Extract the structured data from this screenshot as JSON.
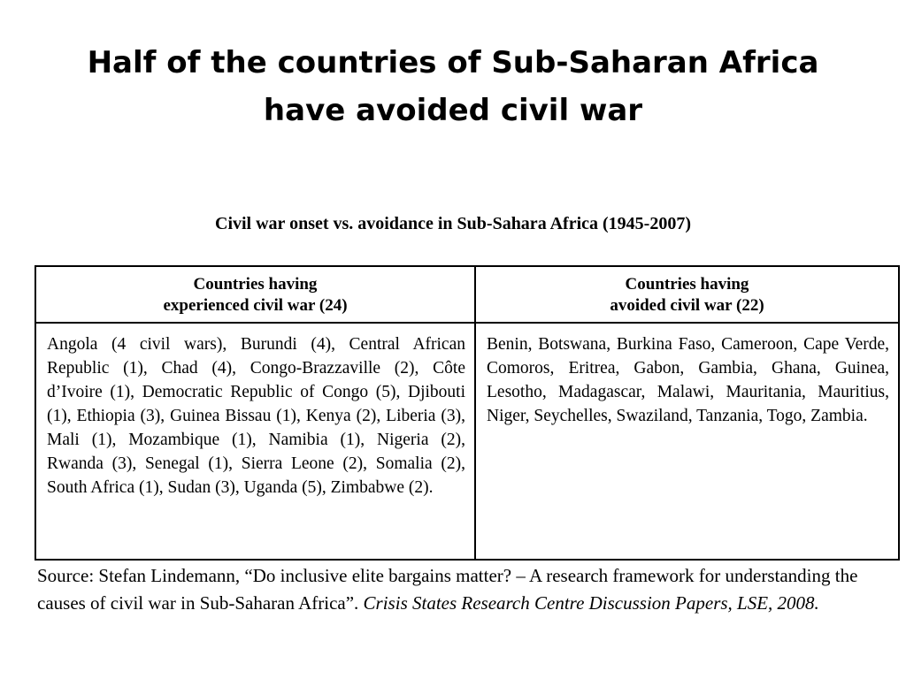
{
  "slide": {
    "title_line1": "Half of the countries of Sub-Saharan Africa",
    "title_line2": "have avoided civil war"
  },
  "table": {
    "caption": "Civil war onset vs. avoidance in Sub-Sahara Africa (1945-2007)",
    "headers": [
      {
        "line1": "Countries having",
        "line2": "experienced civil war (24)"
      },
      {
        "line1": "Countries having",
        "line2": "avoided civil war (22)"
      }
    ],
    "cells": [
      "Angola (4 civil wars), Burundi (4), Central African Republic (1), Chad (4), Congo-Brazzaville (2), Côte d’Ivoire (1), Democratic Republic of Congo (5), Djibouti (1), Ethiopia (3), Guinea Bissau (1), Kenya (2), Liberia (3), Mali (1), Mozambique (1), Namibia (1), Nigeria (2), Rwanda (3), Senegal (1), Sierra Leone (2), Somalia (2), South Africa (1), Sudan (3), Uganda (5), Zimbabwe (2).",
      "Benin, Botswana, Burkina Faso, Cameroon, Cape Verde, Comoros, Eritrea, Gabon, Gambia, Ghana, Guinea, Lesotho, Madagascar, Malawi, Mauritania, Mauritius, Niger, Seychelles, Swaziland, Tanzania, Togo, Zambia."
    ]
  },
  "source": {
    "text": "Source: Stefan Lindemann, “Do inclusive elite bargains matter? – A research framework for understanding the causes of civil war in Sub-Saharan Africa”. ",
    "italic": "Crisis States Research Centre Discussion Papers, LSE, 2008."
  }
}
